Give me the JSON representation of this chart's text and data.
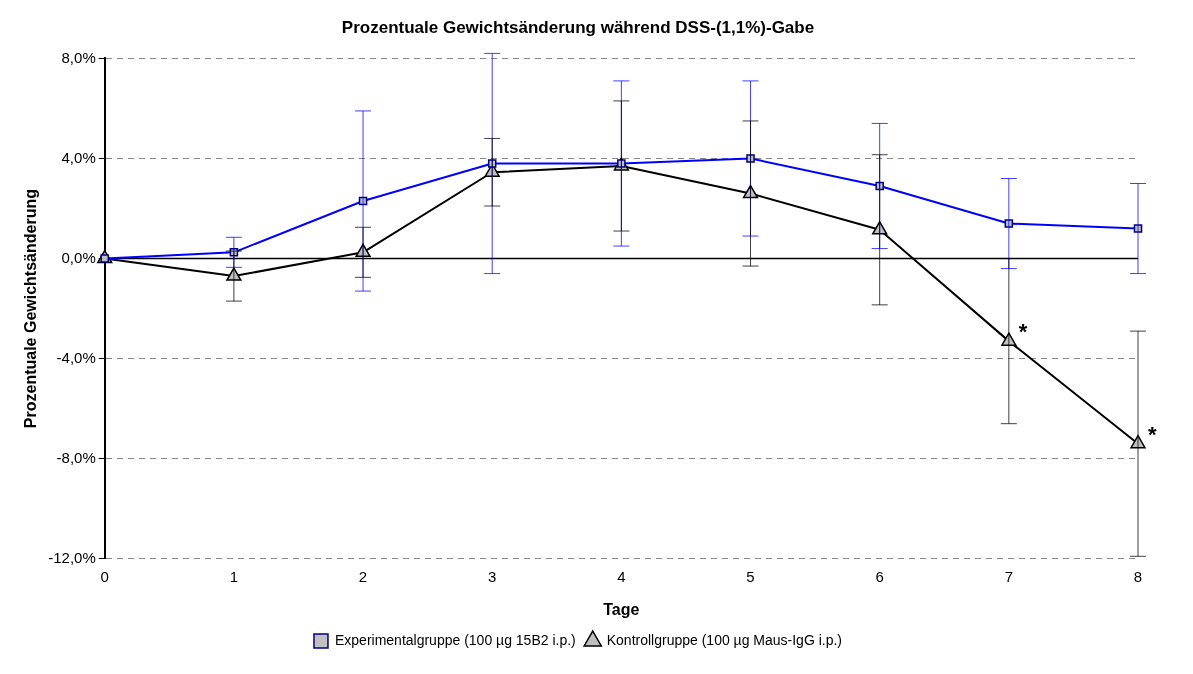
{
  "chart_data": {
    "type": "line",
    "title": "Prozentuale Gewichtsänderung während DSS-(1,1%)-Gabe",
    "xlabel": "Tage",
    "ylabel": "Prozentuale Gewichtsänderung",
    "categories": [
      "0",
      "1",
      "2",
      "3",
      "4",
      "5",
      "6",
      "7",
      "8"
    ],
    "series": [
      {
        "name": "Experimentalgruppe (100 µg 15B2 i.p.)",
        "color": "#0000ff",
        "marker": "square",
        "values": [
          0,
          0.25,
          2.3,
          3.8,
          3.8,
          4.0,
          2.9,
          1.4,
          1.2
        ],
        "errors": [
          null,
          0.6,
          3.6,
          4.4,
          3.3,
          3.1,
          2.5,
          1.8,
          1.8
        ]
      },
      {
        "name": "Kontrollgruppe (100 µg Maus-IgG i.p.)",
        "color": "#000000",
        "marker": "triangle",
        "values": [
          0,
          -0.7,
          0.25,
          3.45,
          3.7,
          2.6,
          1.15,
          -3.3,
          -7.4
        ],
        "errors": [
          null,
          1.0,
          1.0,
          1.35,
          2.6,
          2.9,
          3.0,
          3.3,
          4.5
        ]
      }
    ],
    "ylim": [
      -12,
      8
    ],
    "yticks": [
      {
        "value": -12,
        "label": "-12,0%"
      },
      {
        "value": -8,
        "label": "-8,0%"
      },
      {
        "value": -4,
        "label": "-4,0%"
      },
      {
        "value": 0,
        "label": "0,0%"
      },
      {
        "value": 4,
        "label": "4,0%"
      },
      {
        "value": 8,
        "label": "8,0%"
      }
    ],
    "grid": "y",
    "legend": "bottom",
    "line_style": "solid",
    "annotations": [
      {
        "text": "*",
        "x": "7",
        "y": -3.3
      },
      {
        "text": "*",
        "x": "8",
        "y": -7.4
      }
    ]
  }
}
